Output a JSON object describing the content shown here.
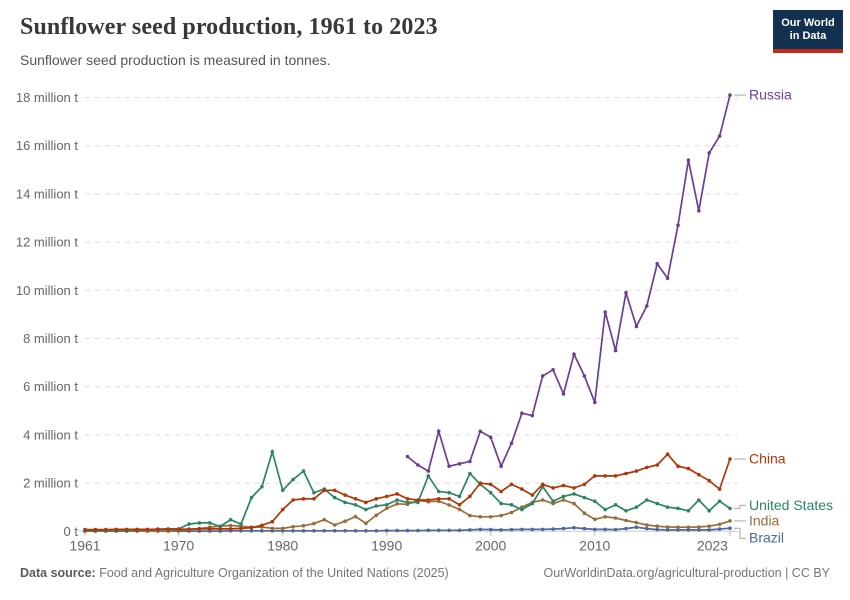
{
  "header": {
    "title": "Sunflower seed production, 1961 to 2023",
    "subtitle": "Sunflower seed production is measured in tonnes.",
    "logo": {
      "line1": "Our World",
      "line2": "in Data"
    }
  },
  "footer": {
    "source_label": "Data source:",
    "source_text": " Food and Agriculture Organization of the United Nations (2025)",
    "credit": "OurWorldinData.org/agricultural-production | CC BY"
  },
  "chart_data": {
    "type": "line",
    "title": "Sunflower seed production, 1961 to 2023",
    "subtitle": "Sunflower seed production is measured in tonnes.",
    "unit": "tonnes",
    "ylabel": "",
    "xlabel": "",
    "grid": "dashed-horizontal",
    "legend_position": "right-end-labels",
    "x": {
      "start_year": 1961,
      "end_year": 2023,
      "ticks": [
        1961,
        1970,
        1980,
        1990,
        2000,
        2010,
        2023
      ]
    },
    "y": {
      "range_millions": [
        0,
        18.6
      ],
      "ticks": [
        {
          "value": 0,
          "label": "0 t"
        },
        {
          "value": 2,
          "label": "2 million t"
        },
        {
          "value": 4,
          "label": "4 million t"
        },
        {
          "value": 6,
          "label": "6 million t"
        },
        {
          "value": 8,
          "label": "8 million t"
        },
        {
          "value": 10,
          "label": "10 million t"
        },
        {
          "value": 12,
          "label": "12 million t"
        },
        {
          "value": 14,
          "label": "14 million t"
        },
        {
          "value": 16,
          "label": "16 million t"
        },
        {
          "value": 18,
          "label": "18 million t"
        }
      ]
    },
    "series": [
      {
        "name": "Russia",
        "color": "#6d3e91",
        "label_offset": 0,
        "values_million_t": [
          null,
          null,
          null,
          null,
          null,
          null,
          null,
          null,
          null,
          null,
          null,
          null,
          null,
          null,
          null,
          null,
          null,
          null,
          null,
          null,
          null,
          null,
          null,
          null,
          null,
          null,
          null,
          null,
          null,
          null,
          null,
          3.1,
          2.75,
          2.5,
          4.15,
          2.7,
          2.8,
          2.9,
          4.15,
          3.9,
          2.7,
          3.65,
          4.9,
          4.8,
          6.45,
          6.7,
          5.7,
          7.35,
          6.45,
          5.35,
          9.1,
          7.5,
          9.9,
          8.5,
          9.35,
          11.1,
          10.5,
          12.7,
          15.4,
          13.3,
          15.7,
          16.4,
          18.1
        ]
      },
      {
        "name": "China",
        "color": "#b13507",
        "label_offset": 0,
        "values_million_t": [
          0.07,
          0.07,
          0.07,
          0.08,
          0.08,
          0.08,
          0.08,
          0.08,
          0.08,
          0.08,
          0.09,
          0.1,
          0.1,
          0.1,
          0.1,
          0.12,
          0.15,
          0.25,
          0.4,
          0.9,
          1.3,
          1.35,
          1.35,
          1.7,
          1.7,
          1.5,
          1.35,
          1.2,
          1.35,
          1.45,
          1.55,
          1.35,
          1.3,
          1.3,
          1.35,
          1.35,
          1.1,
          1.45,
          2.0,
          1.95,
          1.65,
          1.95,
          1.75,
          1.5,
          1.95,
          1.8,
          1.9,
          1.8,
          1.95,
          2.3,
          2.3,
          2.3,
          2.4,
          2.5,
          2.65,
          2.75,
          3.2,
          2.7,
          2.6,
          2.35,
          2.1,
          1.75,
          3.0
        ]
      },
      {
        "name": "United States",
        "color": "#2c8465",
        "label_offset": -3,
        "values_million_t": [
          0.02,
          0.02,
          0.02,
          0.03,
          0.03,
          0.05,
          0.07,
          0.09,
          0.1,
          0.1,
          0.3,
          0.35,
          0.35,
          0.2,
          0.48,
          0.3,
          1.4,
          1.85,
          3.3,
          1.7,
          2.15,
          2.5,
          1.6,
          1.75,
          1.4,
          1.2,
          1.1,
          0.9,
          1.05,
          1.1,
          1.3,
          1.2,
          1.2,
          2.3,
          1.65,
          1.6,
          1.45,
          2.4,
          1.95,
          1.6,
          1.15,
          1.1,
          0.9,
          1.15,
          1.85,
          1.25,
          1.45,
          1.55,
          1.4,
          1.25,
          0.9,
          1.1,
          0.85,
          1.0,
          1.3,
          1.15,
          1.0,
          0.95,
          0.85,
          1.3,
          0.85,
          1.25,
          0.95
        ]
      },
      {
        "name": "India",
        "color": "#996d39",
        "label_offset": 0,
        "values_million_t": [
          0.01,
          0.01,
          0.01,
          0.01,
          0.01,
          0.01,
          0.01,
          0.01,
          0.01,
          0.02,
          0.07,
          0.11,
          0.17,
          0.21,
          0.24,
          0.21,
          0.17,
          0.18,
          0.12,
          0.12,
          0.19,
          0.23,
          0.32,
          0.48,
          0.26,
          0.42,
          0.61,
          0.33,
          0.67,
          0.95,
          1.14,
          1.12,
          1.28,
          1.23,
          1.25,
          1.09,
          0.91,
          0.65,
          0.6,
          0.6,
          0.65,
          0.78,
          1.0,
          1.2,
          1.3,
          1.15,
          1.3,
          1.15,
          0.75,
          0.5,
          0.6,
          0.55,
          0.45,
          0.36,
          0.26,
          0.21,
          0.18,
          0.17,
          0.17,
          0.18,
          0.21,
          0.29,
          0.43
        ]
      },
      {
        "name": "Brazil",
        "color": "#4c6a9c",
        "label_offset": 10,
        "values_million_t": [
          0.01,
          0.01,
          0.01,
          0.01,
          0.01,
          0.01,
          0.01,
          0.01,
          0.01,
          0.01,
          0.01,
          0.01,
          0.01,
          0.01,
          0.02,
          0.02,
          0.02,
          0.02,
          0.02,
          0.02,
          0.02,
          0.02,
          0.02,
          0.02,
          0.02,
          0.02,
          0.02,
          0.02,
          0.02,
          0.03,
          0.03,
          0.03,
          0.03,
          0.04,
          0.04,
          0.04,
          0.04,
          0.06,
          0.08,
          0.07,
          0.06,
          0.07,
          0.08,
          0.08,
          0.08,
          0.09,
          0.11,
          0.15,
          0.11,
          0.08,
          0.08,
          0.07,
          0.11,
          0.17,
          0.11,
          0.07,
          0.06,
          0.06,
          0.06,
          0.06,
          0.06,
          0.09,
          0.13
        ]
      }
    ]
  }
}
